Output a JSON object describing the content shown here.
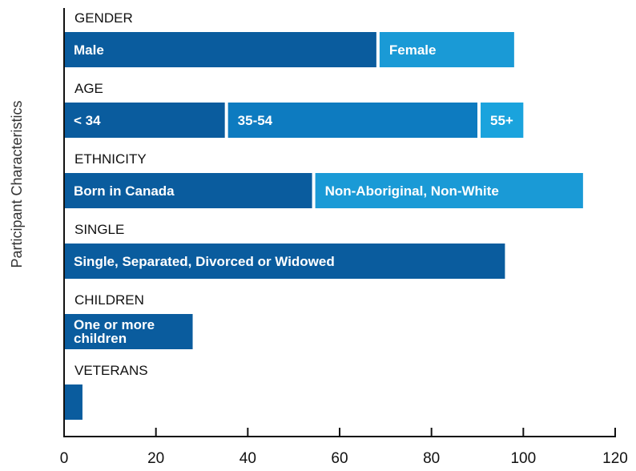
{
  "chart_data": {
    "type": "stacked-bar-groups",
    "ylabel": "Participant Characteristics",
    "xlim": [
      0,
      120
    ],
    "xticks": [
      0,
      20,
      40,
      60,
      80,
      100,
      120
    ],
    "groups": [
      {
        "name": "GENDER",
        "segments": [
          {
            "name": "Male",
            "value": 68,
            "color": "#0a5c9e"
          },
          {
            "name": "Female",
            "value": 30,
            "color": "#1a9ad6"
          }
        ]
      },
      {
        "name": "AGE",
        "segments": [
          {
            "name": "< 34",
            "value": 35,
            "color": "#0a5c9e"
          },
          {
            "name": "35-54",
            "value": 55,
            "color": "#0d7bc0"
          },
          {
            "name": "55+",
            "value": 10,
            "color": "#1aa3dd"
          }
        ]
      },
      {
        "name": "ETHNICITY",
        "segments": [
          {
            "name": "Born in Canada",
            "value": 54,
            "color": "#0a5c9e"
          },
          {
            "name": "Non-Aboriginal, Non-White",
            "value": 59,
            "color": "#1a9ad6"
          }
        ]
      },
      {
        "name": "SINGLE",
        "segments": [
          {
            "name": "Single, Separated, Divorced or Widowed",
            "value": 96,
            "color": "#0a5c9e"
          }
        ]
      },
      {
        "name": "CHILDREN",
        "segments": [
          {
            "name": "One or more children",
            "value": 28,
            "color": "#0a5c9e"
          }
        ]
      },
      {
        "name": "VETERANS",
        "segments": [
          {
            "name": null,
            "value": 4,
            "color": "#0a5c9e"
          }
        ]
      }
    ]
  }
}
